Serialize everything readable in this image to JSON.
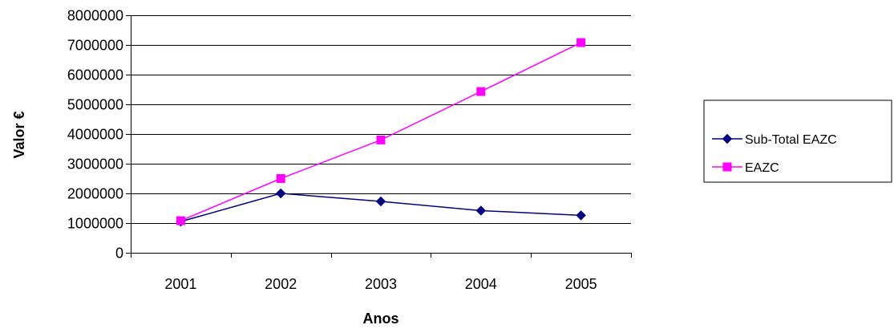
{
  "chart_data": {
    "type": "line",
    "title": "",
    "xlabel": "Anos",
    "ylabel": "Valor €",
    "categories": [
      "2001",
      "2002",
      "2003",
      "2004",
      "2005"
    ],
    "ylim": [
      0,
      8000000
    ],
    "yticks": [
      0,
      1000000,
      2000000,
      3000000,
      4000000,
      5000000,
      6000000,
      7000000,
      8000000
    ],
    "ytick_labels": [
      "0",
      "1000000",
      "2000000",
      "3000000",
      "4000000",
      "5000000",
      "6000000",
      "7000000",
      "8000000"
    ],
    "grid": "horizontal",
    "legend_position": "right",
    "series": [
      {
        "name": "Sub-Total EAZC",
        "values": [
          1050000,
          2000000,
          1730000,
          1420000,
          1260000
        ],
        "color": "#000080",
        "marker": "diamond"
      },
      {
        "name": "EAZC",
        "values": [
          1080000,
          2500000,
          3800000,
          5430000,
          7080000
        ],
        "color": "#FF00FF",
        "marker": "square"
      }
    ]
  }
}
